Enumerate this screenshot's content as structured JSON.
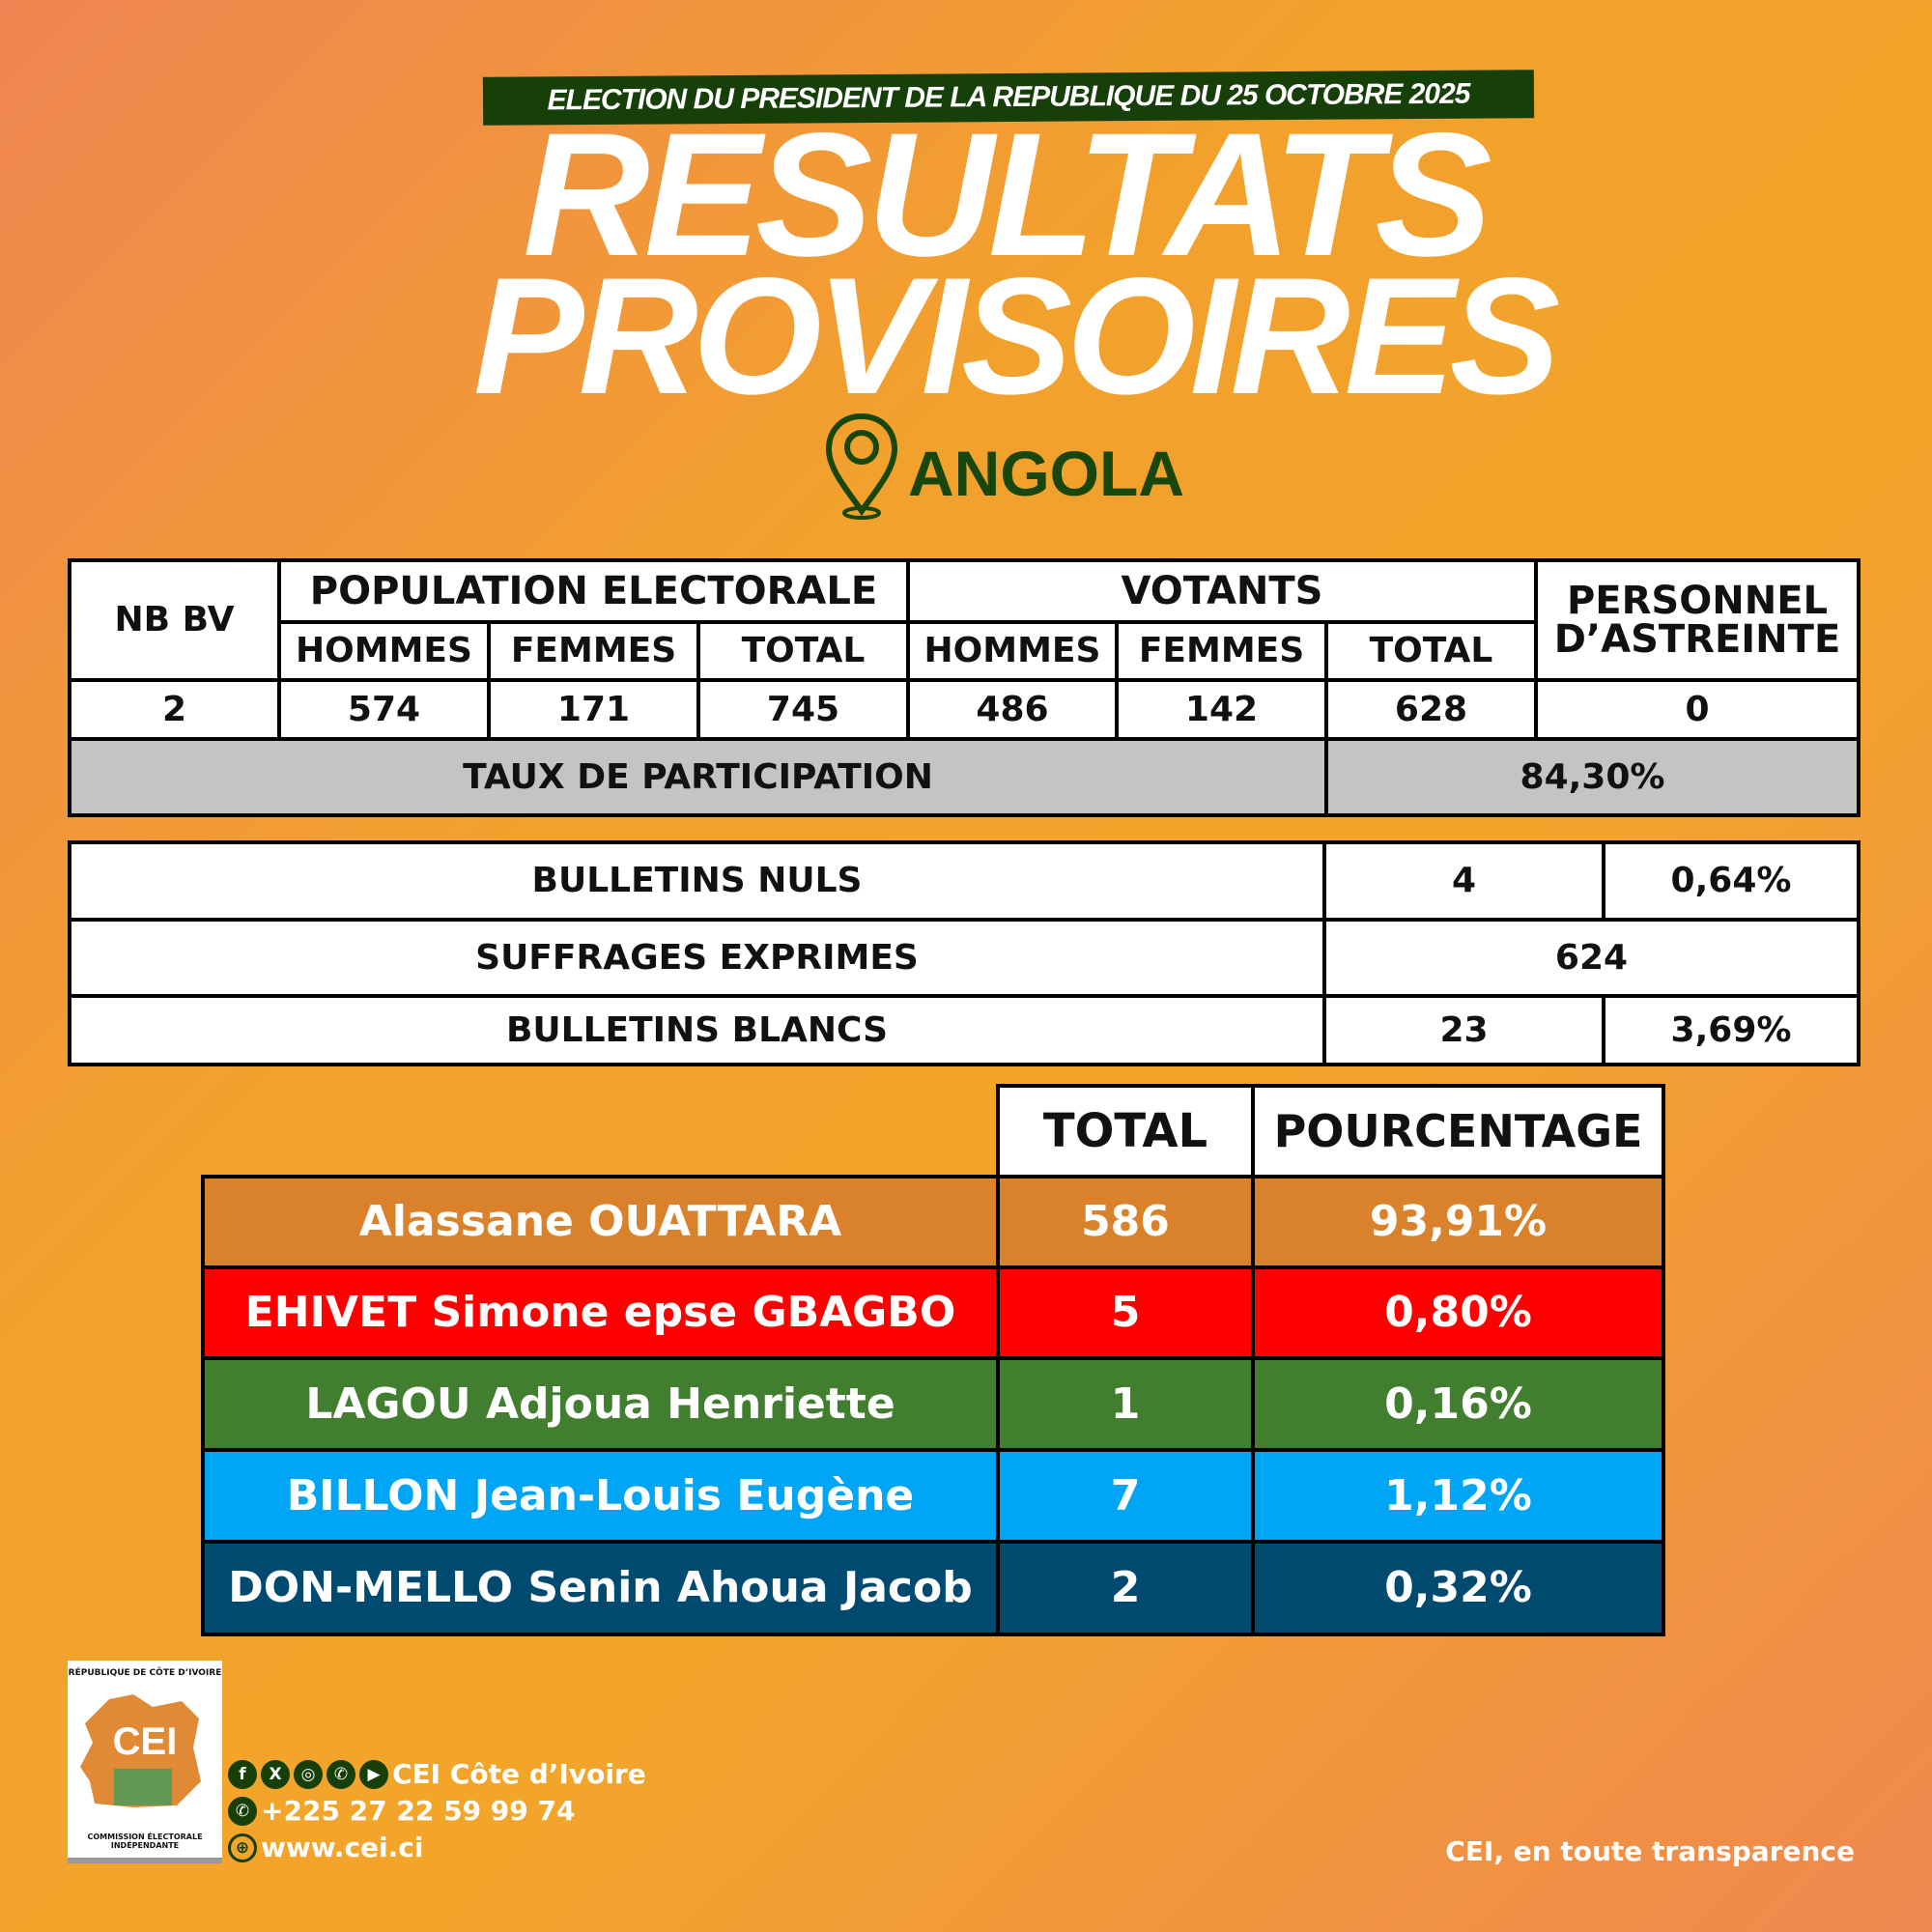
{
  "header": {
    "banner": "ELECTION DU PRESIDENT DE LA REPUBLIQUE DU 25 OCTOBRE 2025",
    "title_line1": "RESULTATS",
    "title_line2": "PROVISOIRES",
    "country": "ANGOLA"
  },
  "stats": {
    "nb_bv_label": "NB BV",
    "population_label": "POPULATION ELECTORALE",
    "votants_label": "VOTANTS",
    "personnel_label": "PERSONNEL D’ASTREINTE",
    "hommes": "HOMMES",
    "femmes": "FEMMES",
    "total": "TOTAL",
    "nb_bv": "2",
    "pop_hommes": "574",
    "pop_femmes": "171",
    "pop_total": "745",
    "vot_hommes": "486",
    "vot_femmes": "142",
    "vot_total": "628",
    "personnel": "0",
    "taux_label": "TAUX DE PARTICIPATION",
    "taux": "84,30%"
  },
  "bulletins": {
    "nuls_label": "BULLETINS NULS",
    "nuls": "4",
    "nuls_pct": "0,64%",
    "exprimes_label": "SUFFRAGES EXPRIMES",
    "exprimes": "624",
    "blancs_label": "BULLETINS BLANCS",
    "blancs": "23",
    "blancs_pct": "3,69%"
  },
  "results": {
    "total_header": "TOTAL",
    "pct_header": "POURCENTAGE",
    "candidates": [
      {
        "name": "Alassane OUATTARA",
        "total": "586",
        "pct": "93,91%",
        "color": "#d9822b"
      },
      {
        "name": "EHIVET Simone epse GBAGBO",
        "total": "5",
        "pct": "0,80%",
        "color": "#fe0000"
      },
      {
        "name": "LAGOU Adjoua Henriette",
        "total": "1",
        "pct": "0,16%",
        "color": "#427e2f"
      },
      {
        "name": "BILLON Jean-Louis Eugène",
        "total": "7",
        "pct": "1,12%",
        "color": "#00a6f5"
      },
      {
        "name": "DON-MELLO Senin Ahoua Jacob",
        "total": "2",
        "pct": "0,32%",
        "color": "#004a70"
      }
    ]
  },
  "footer": {
    "logo_top": "RÉPUBLIQUE DE CÔTE D’IVOIRE",
    "logo_text": "CEI",
    "logo_bottom": "COMMISSION ÉLECTORALE INDÉPENDANTE",
    "social": "CEI Côte d’Ivoire",
    "phone": "+225 27 22 59 99 74",
    "website": "www.cei.ci",
    "tagline": "CEI, en toute transparence"
  }
}
